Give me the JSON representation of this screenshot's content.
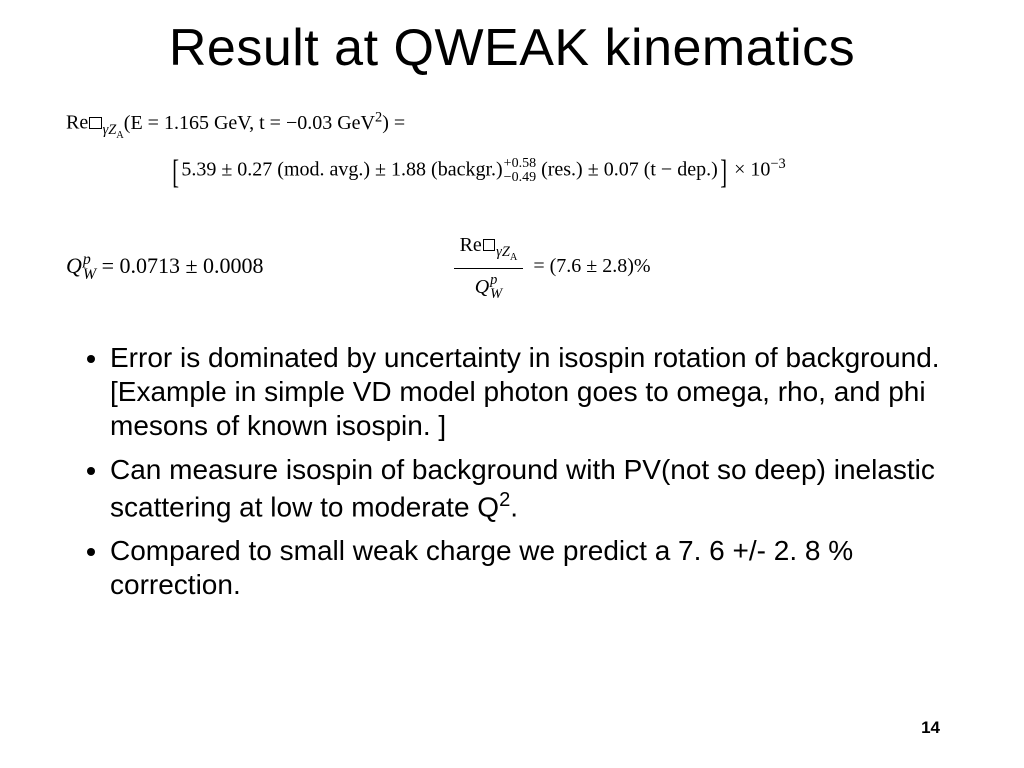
{
  "title": "Result at QWEAK kinematics",
  "eq": {
    "line1_pre": "Re",
    "line1_sub": "γZ",
    "line1_subA": "A",
    "line1_args": "(E = 1.165 GeV, t = −0.03 GeV",
    "line1_sq": "2",
    "line1_post": ")   =",
    "central": "5.39 ± 0.27 (mod. avg.)   ±   1.88 (backgr.)",
    "res_top": "+0.58",
    "res_bot": "−0.49",
    "res_label": " (res.) ± 0.07 (t − dep.)",
    "times": "   ×  10",
    "exp": "−3",
    "qw_sym_pre": "Q",
    "qw_sup": "p",
    "qw_sub": "W",
    "qw_val": " = 0.0713 ± 0.0008",
    "frac_num_pre": "Re",
    "frac_num_sub": "γZ",
    "frac_num_subA": "A",
    "frac_den_pre": "Q",
    "ratio_val": " = (7.6 ± 2.8)%"
  },
  "bullets": [
    "Error is dominated by uncertainty in isospin rotation of background.  [Example in simple VD model photon goes to omega, rho, and phi mesons of known isospin. ]",
    "Can measure isospin of background with PV(not so deep) inelastic scattering at low to moderate Q",
    "Compared to small weak charge we predict a 7. 6 +/- 2. 8 % correction."
  ],
  "bullet2_sup": "2",
  "bullet2_tail": ".",
  "page": "14"
}
